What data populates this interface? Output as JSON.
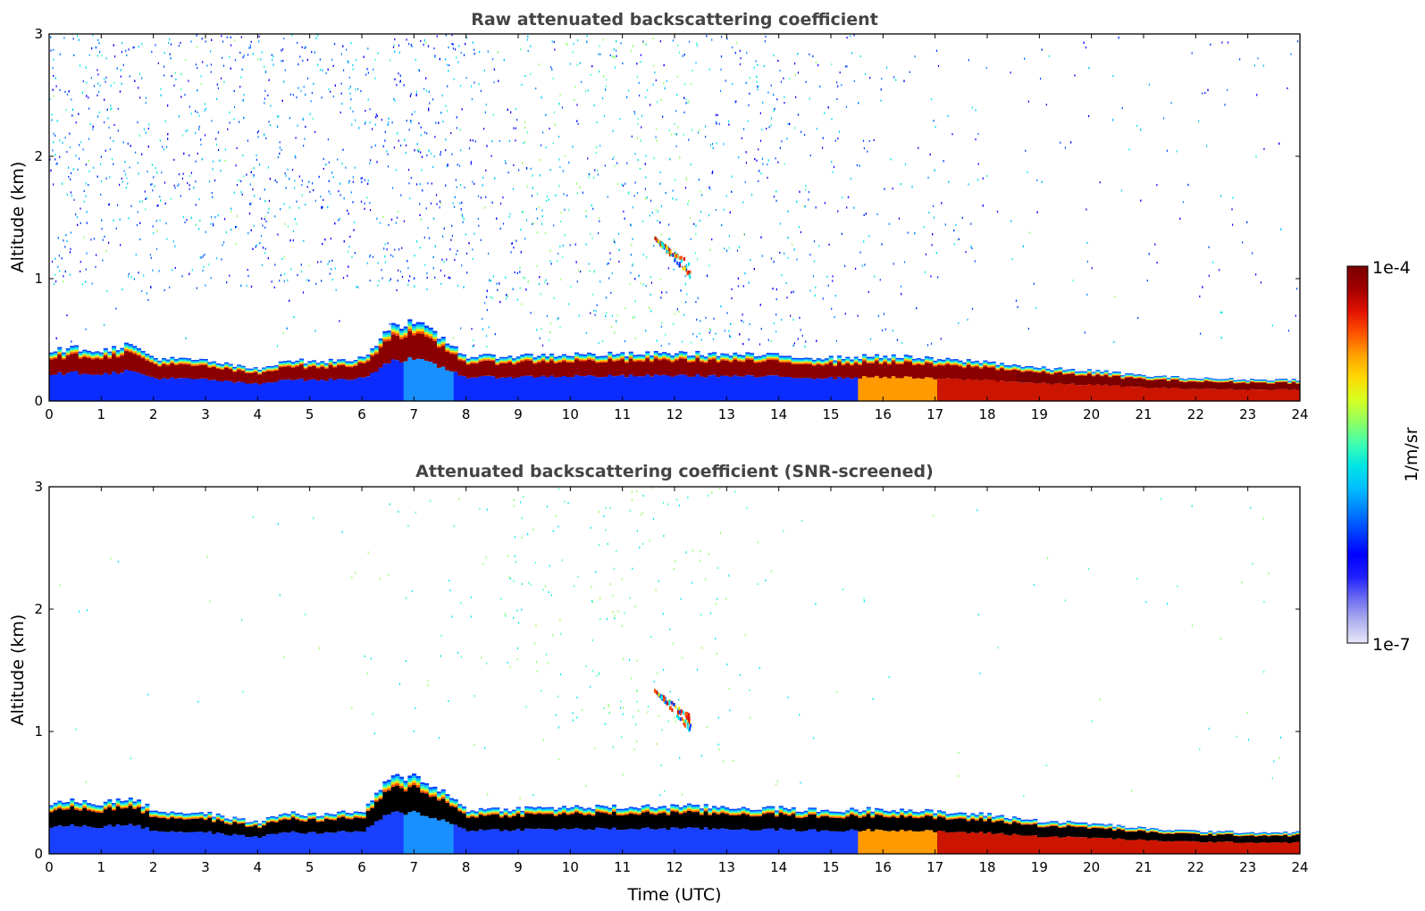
{
  "figure": {
    "xlabel": "Time (UTC)",
    "colorbar": {
      "max_label": "1e-4",
      "min_label": "1e-7",
      "unit": "1/m/sr"
    }
  },
  "colors": {
    "frame": "#000000",
    "title": "#444444",
    "colormap": [
      "#e8e8f8",
      "#b0b0f0",
      "#6c6cf0",
      "#2020ff",
      "#0000ff",
      "#0040ff",
      "#0080ff",
      "#00bfff",
      "#00e5e5",
      "#40ffb0",
      "#90ff60",
      "#d8ff20",
      "#ffd800",
      "#ffa000",
      "#ff5000",
      "#e01000",
      "#a00000",
      "#7a0000"
    ],
    "screened_core": "#000000"
  },
  "chart_data": [
    {
      "type": "heatmap",
      "title": "Raw attenuated backscattering coefficient",
      "xlabel": "",
      "ylabel": "Altitude (km)",
      "xlim": [
        0,
        24
      ],
      "ylim": [
        0,
        3
      ],
      "xticks": [
        "0",
        "1",
        "2",
        "3",
        "4",
        "5",
        "6",
        "7",
        "8",
        "9",
        "10",
        "11",
        "12",
        "13",
        "14",
        "15",
        "16",
        "17",
        "18",
        "19",
        "20",
        "21",
        "22",
        "23",
        "24"
      ],
      "yticks": [
        "0",
        "1",
        "2",
        "3"
      ],
      "color_scale": {
        "min": 1e-07,
        "max": 0.0001,
        "unit": "1/m/sr",
        "scale": "log"
      },
      "boundary_layer_top_km": [
        [
          0,
          0.4
        ],
        [
          0.5,
          0.42
        ],
        [
          1,
          0.4
        ],
        [
          1.5,
          0.45
        ],
        [
          2,
          0.34
        ],
        [
          2.5,
          0.33
        ],
        [
          3,
          0.32
        ],
        [
          3.5,
          0.28
        ],
        [
          4,
          0.25
        ],
        [
          4.5,
          0.33
        ],
        [
          5,
          0.31
        ],
        [
          5.5,
          0.32
        ],
        [
          6,
          0.34
        ],
        [
          6.5,
          0.6
        ],
        [
          7,
          0.62
        ],
        [
          7.5,
          0.5
        ],
        [
          8,
          0.35
        ],
        [
          9,
          0.36
        ],
        [
          10,
          0.37
        ],
        [
          11,
          0.37
        ],
        [
          12,
          0.38
        ],
        [
          13,
          0.37
        ],
        [
          14,
          0.36
        ],
        [
          15,
          0.34
        ],
        [
          16,
          0.36
        ],
        [
          17,
          0.33
        ],
        [
          18,
          0.31
        ],
        [
          19,
          0.26
        ],
        [
          20,
          0.24
        ],
        [
          21,
          0.2
        ],
        [
          22,
          0.18
        ],
        [
          23,
          0.17
        ],
        [
          24,
          0.17
        ]
      ],
      "elevated_layer": {
        "time_range": [
          11.6,
          12.3
        ],
        "altitude_range_km": [
          1.0,
          1.35
        ]
      }
    },
    {
      "type": "heatmap",
      "title": "Attenuated backscattering coefficient (SNR-screened)",
      "xlabel": "Time (UTC)",
      "ylabel": "Altitude (km)",
      "xlim": [
        0,
        24
      ],
      "ylim": [
        0,
        3
      ],
      "xticks": [
        "0",
        "1",
        "2",
        "3",
        "4",
        "5",
        "6",
        "7",
        "8",
        "9",
        "10",
        "11",
        "12",
        "13",
        "14",
        "15",
        "16",
        "17",
        "18",
        "19",
        "20",
        "21",
        "22",
        "23",
        "24"
      ],
      "yticks": [
        "0",
        "1",
        "2",
        "3"
      ],
      "color_scale": {
        "min": 1e-07,
        "max": 0.0001,
        "unit": "1/m/sr",
        "scale": "log"
      },
      "boundary_layer_top_km": [
        [
          0,
          0.4
        ],
        [
          0.5,
          0.42
        ],
        [
          1,
          0.4
        ],
        [
          1.5,
          0.45
        ],
        [
          2,
          0.34
        ],
        [
          2.5,
          0.33
        ],
        [
          3,
          0.32
        ],
        [
          3.5,
          0.28
        ],
        [
          4,
          0.25
        ],
        [
          4.5,
          0.33
        ],
        [
          5,
          0.31
        ],
        [
          5.5,
          0.32
        ],
        [
          6,
          0.34
        ],
        [
          6.5,
          0.6
        ],
        [
          7,
          0.62
        ],
        [
          7.5,
          0.5
        ],
        [
          8,
          0.35
        ],
        [
          9,
          0.36
        ],
        [
          10,
          0.37
        ],
        [
          11,
          0.37
        ],
        [
          12,
          0.38
        ],
        [
          13,
          0.37
        ],
        [
          14,
          0.36
        ],
        [
          15,
          0.34
        ],
        [
          16,
          0.36
        ],
        [
          17,
          0.33
        ],
        [
          18,
          0.31
        ],
        [
          19,
          0.26
        ],
        [
          20,
          0.24
        ],
        [
          21,
          0.2
        ],
        [
          22,
          0.18
        ],
        [
          23,
          0.17
        ],
        [
          24,
          0.17
        ]
      ],
      "elevated_layer": {
        "time_range": [
          11.6,
          12.3
        ],
        "altitude_range_km": [
          1.0,
          1.35
        ]
      }
    }
  ]
}
